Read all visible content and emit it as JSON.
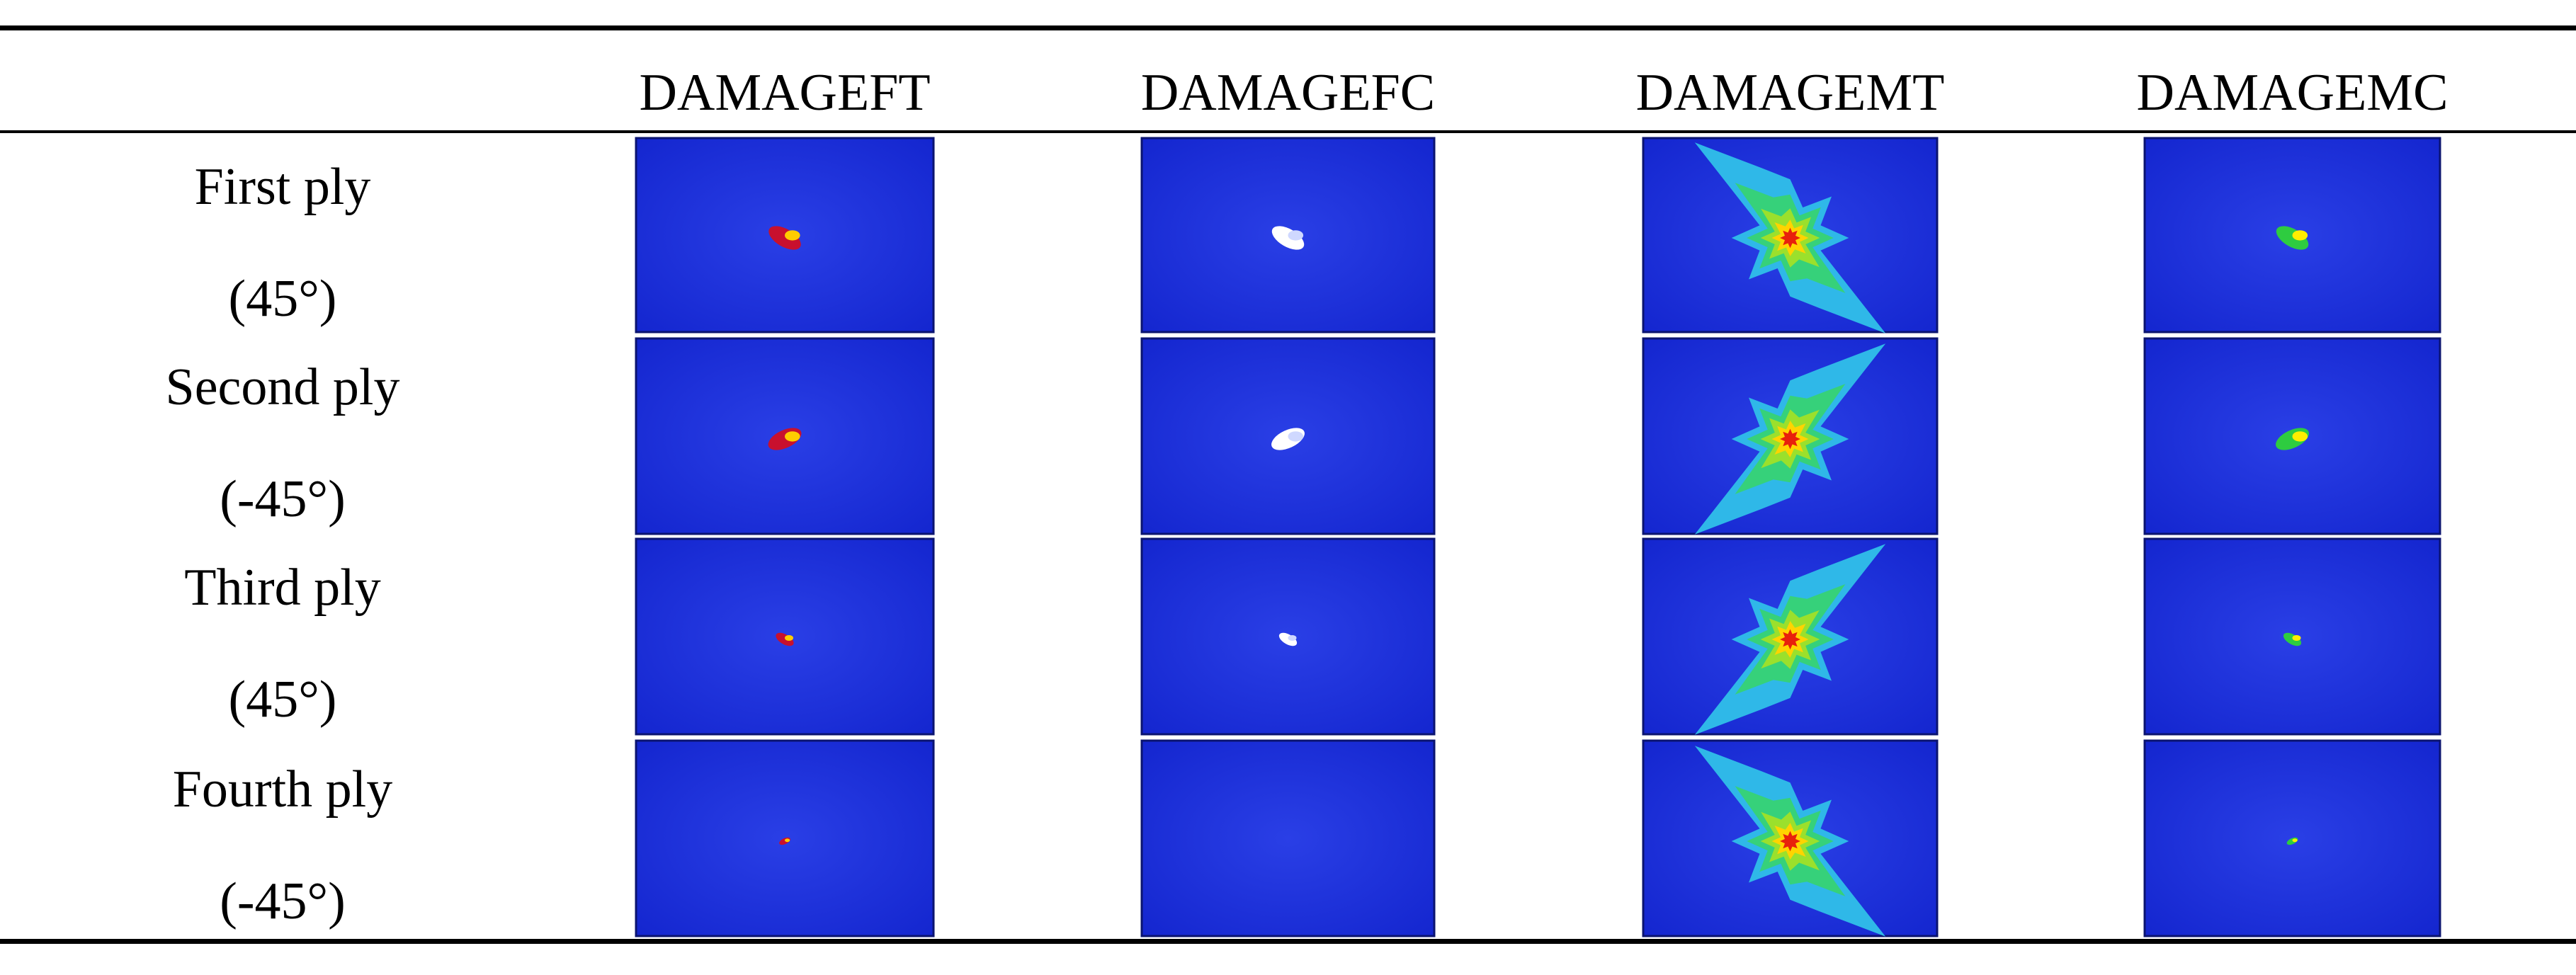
{
  "table": {
    "columns": [
      "DAMAGEFT",
      "DAMAGEFC",
      "DAMAGEMT",
      "DAMAGEMC"
    ],
    "rows": [
      {
        "name": "First ply",
        "angle": "(45°)"
      },
      {
        "name": "Second ply",
        "angle": "(-45°)"
      },
      {
        "name": "Third ply",
        "angle": "(45°)"
      },
      {
        "name": "Fourth ply",
        "angle": "(-45°)"
      }
    ]
  }
}
